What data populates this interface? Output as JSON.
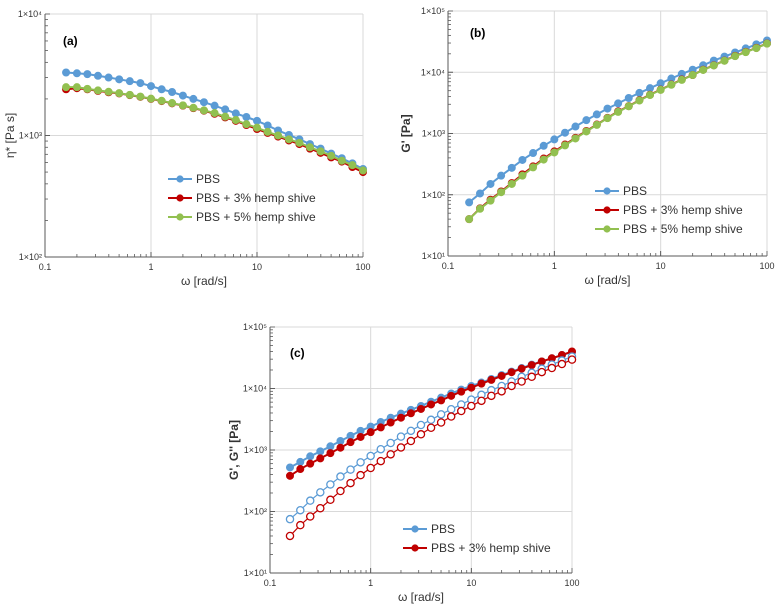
{
  "chart_data": [
    {
      "type": "line",
      "panel_label": "(a)",
      "xlabel": "ω [rad/s]",
      "ylabel": "η* [Pa s]",
      "xscale": "log",
      "yscale": "log",
      "xlim": [
        0.1,
        100
      ],
      "ylim": [
        100,
        10000
      ],
      "xticks": [
        "0.1",
        "1",
        "10",
        "100"
      ],
      "yticks": [
        "1×10²",
        "1×10³",
        "1×10⁴"
      ],
      "grid": true,
      "legend": "center-right",
      "x": [
        0.158,
        0.2,
        0.251,
        0.316,
        0.398,
        0.501,
        0.631,
        0.794,
        1,
        1.26,
        1.58,
        2,
        2.51,
        3.16,
        3.98,
        5.01,
        6.31,
        7.94,
        10,
        12.6,
        15.8,
        20,
        25.1,
        31.6,
        39.8,
        50.1,
        63.1,
        79.4,
        100
      ],
      "series": [
        {
          "name": "PBS",
          "color": "#5b9bd5",
          "marker": "filled",
          "values": [
            3300,
            3250,
            3200,
            3100,
            3000,
            2900,
            2800,
            2700,
            2550,
            2400,
            2280,
            2130,
            2000,
            1880,
            1760,
            1640,
            1520,
            1420,
            1320,
            1210,
            1100,
            1010,
            930,
            850,
            780,
            710,
            650,
            590,
            530
          ]
        },
        {
          "name": "PBS + 3% hemp shive",
          "color": "#c00000",
          "marker": "filled",
          "values": [
            2400,
            2450,
            2400,
            2330,
            2270,
            2220,
            2150,
            2080,
            2000,
            1920,
            1840,
            1760,
            1680,
            1600,
            1510,
            1410,
            1320,
            1220,
            1130,
            1050,
            980,
            910,
            850,
            780,
            720,
            660,
            610,
            550,
            500
          ]
        },
        {
          "name": "PBS + 5% hemp shive",
          "color": "#92c050",
          "marker": "filled",
          "values": [
            2500,
            2500,
            2420,
            2350,
            2290,
            2230,
            2160,
            2090,
            2010,
            1930,
            1850,
            1770,
            1690,
            1610,
            1530,
            1430,
            1340,
            1240,
            1160,
            1070,
            1000,
            930,
            870,
            800,
            740,
            680,
            620,
            570,
            515
          ]
        }
      ]
    },
    {
      "type": "line",
      "panel_label": "(b)",
      "xlabel": "ω [rad/s]",
      "ylabel": "G' [Pa]",
      "xscale": "log",
      "yscale": "log",
      "xlim": [
        0.1,
        100
      ],
      "ylim": [
        10,
        100000
      ],
      "xticks": [
        "0.1",
        "1",
        "10",
        "100"
      ],
      "yticks": [
        "1×10¹",
        "1×10²",
        "1×10³",
        "1×10⁴",
        "1×10⁵"
      ],
      "grid": true,
      "legend": "bottom-right",
      "x": [
        0.158,
        0.2,
        0.251,
        0.316,
        0.398,
        0.501,
        0.631,
        0.794,
        1,
        1.26,
        1.58,
        2,
        2.51,
        3.16,
        3.98,
        5.01,
        6.31,
        7.94,
        10,
        12.6,
        15.8,
        20,
        25.1,
        31.6,
        39.8,
        50.1,
        63.1,
        79.4,
        100
      ],
      "series": [
        {
          "name": "PBS",
          "color": "#5b9bd5",
          "marker": "filled",
          "values": [
            75,
            105,
            150,
            205,
            275,
            370,
            480,
            630,
            800,
            1030,
            1300,
            1650,
            2050,
            2550,
            3100,
            3800,
            4600,
            5500,
            6600,
            7900,
            9400,
            11000,
            13000,
            15500,
            18000,
            21000,
            24500,
            28500,
            33000
          ]
        },
        {
          "name": "PBS + 3% hemp shive",
          "color": "#c00000",
          "marker": "filled",
          "values": [
            40,
            60,
            83,
            113,
            155,
            215,
            290,
            390,
            510,
            660,
            850,
            1100,
            1400,
            1800,
            2300,
            2800,
            3500,
            4300,
            5200,
            6300,
            7600,
            9000,
            11000,
            13000,
            15500,
            18500,
            21500,
            25000,
            29500
          ]
        },
        {
          "name": "PBS + 5% hemp shive",
          "color": "#92c050",
          "marker": "filled",
          "values": [
            40,
            59,
            80,
            110,
            150,
            205,
            280,
            375,
            490,
            640,
            830,
            1080,
            1380,
            1780,
            2250,
            2780,
            3450,
            4250,
            5150,
            6250,
            7500,
            9000,
            10900,
            12900,
            15400,
            18300,
            21300,
            24800,
            29300
          ]
        }
      ]
    },
    {
      "type": "line",
      "panel_label": "(c)",
      "xlabel": "ω [rad/s]",
      "ylabel": "G', G'' [Pa]",
      "xscale": "log",
      "yscale": "log",
      "xlim": [
        0.1,
        100
      ],
      "ylim": [
        10,
        100000
      ],
      "xticks": [
        "0.1",
        "1",
        "10",
        "100"
      ],
      "yticks": [
        "1×10¹",
        "1×10²",
        "1×10³",
        "1×10⁴",
        "1×10⁵"
      ],
      "grid": true,
      "legend": "bottom-right",
      "x": [
        0.158,
        0.2,
        0.251,
        0.316,
        0.398,
        0.501,
        0.631,
        0.794,
        1,
        1.26,
        1.58,
        2,
        2.51,
        3.16,
        3.98,
        5.01,
        6.31,
        7.94,
        10,
        12.6,
        15.8,
        20,
        25.1,
        31.6,
        39.8,
        50.1,
        63.1,
        79.4,
        100
      ],
      "series": [
        {
          "name": "PBS",
          "color": "#5b9bd5",
          "marker": "filled",
          "values": [
            520,
            640,
            790,
            950,
            1150,
            1400,
            1700,
            2050,
            2400,
            2850,
            3350,
            3900,
            4500,
            5200,
            6100,
            7100,
            8300,
            9600,
            11000,
            12500,
            14300,
            16500,
            18800,
            21500,
            24500,
            27500,
            31000,
            35000,
            39000
          ]
        },
        {
          "name": "PBS + 3% hemp shive",
          "color": "#c00000",
          "marker": "filled",
          "values": [
            380,
            490,
            600,
            730,
            890,
            1090,
            1340,
            1630,
            1950,
            2330,
            2800,
            3350,
            3950,
            4650,
            5500,
            6400,
            7600,
            8900,
            10300,
            12000,
            13800,
            16000,
            18400,
            21000,
            24000,
            27500,
            31000,
            35000,
            40000
          ]
        },
        {
          "color": "#5b9bd5",
          "marker": "open",
          "values": [
            75,
            105,
            150,
            205,
            275,
            370,
            480,
            630,
            800,
            1030,
            1300,
            1650,
            2050,
            2550,
            3100,
            3800,
            4600,
            5500,
            6600,
            7900,
            9400,
            11000,
            13000,
            15500,
            18000,
            21000,
            24500,
            28500,
            33000
          ]
        },
        {
          "color": "#c00000",
          "marker": "open",
          "values": [
            40,
            60,
            83,
            113,
            155,
            215,
            290,
            390,
            510,
            660,
            850,
            1100,
            1400,
            1800,
            2300,
            2800,
            3500,
            4300,
            5200,
            6300,
            7600,
            9000,
            11000,
            13000,
            15500,
            18500,
            21500,
            25000,
            29500
          ]
        }
      ]
    }
  ]
}
